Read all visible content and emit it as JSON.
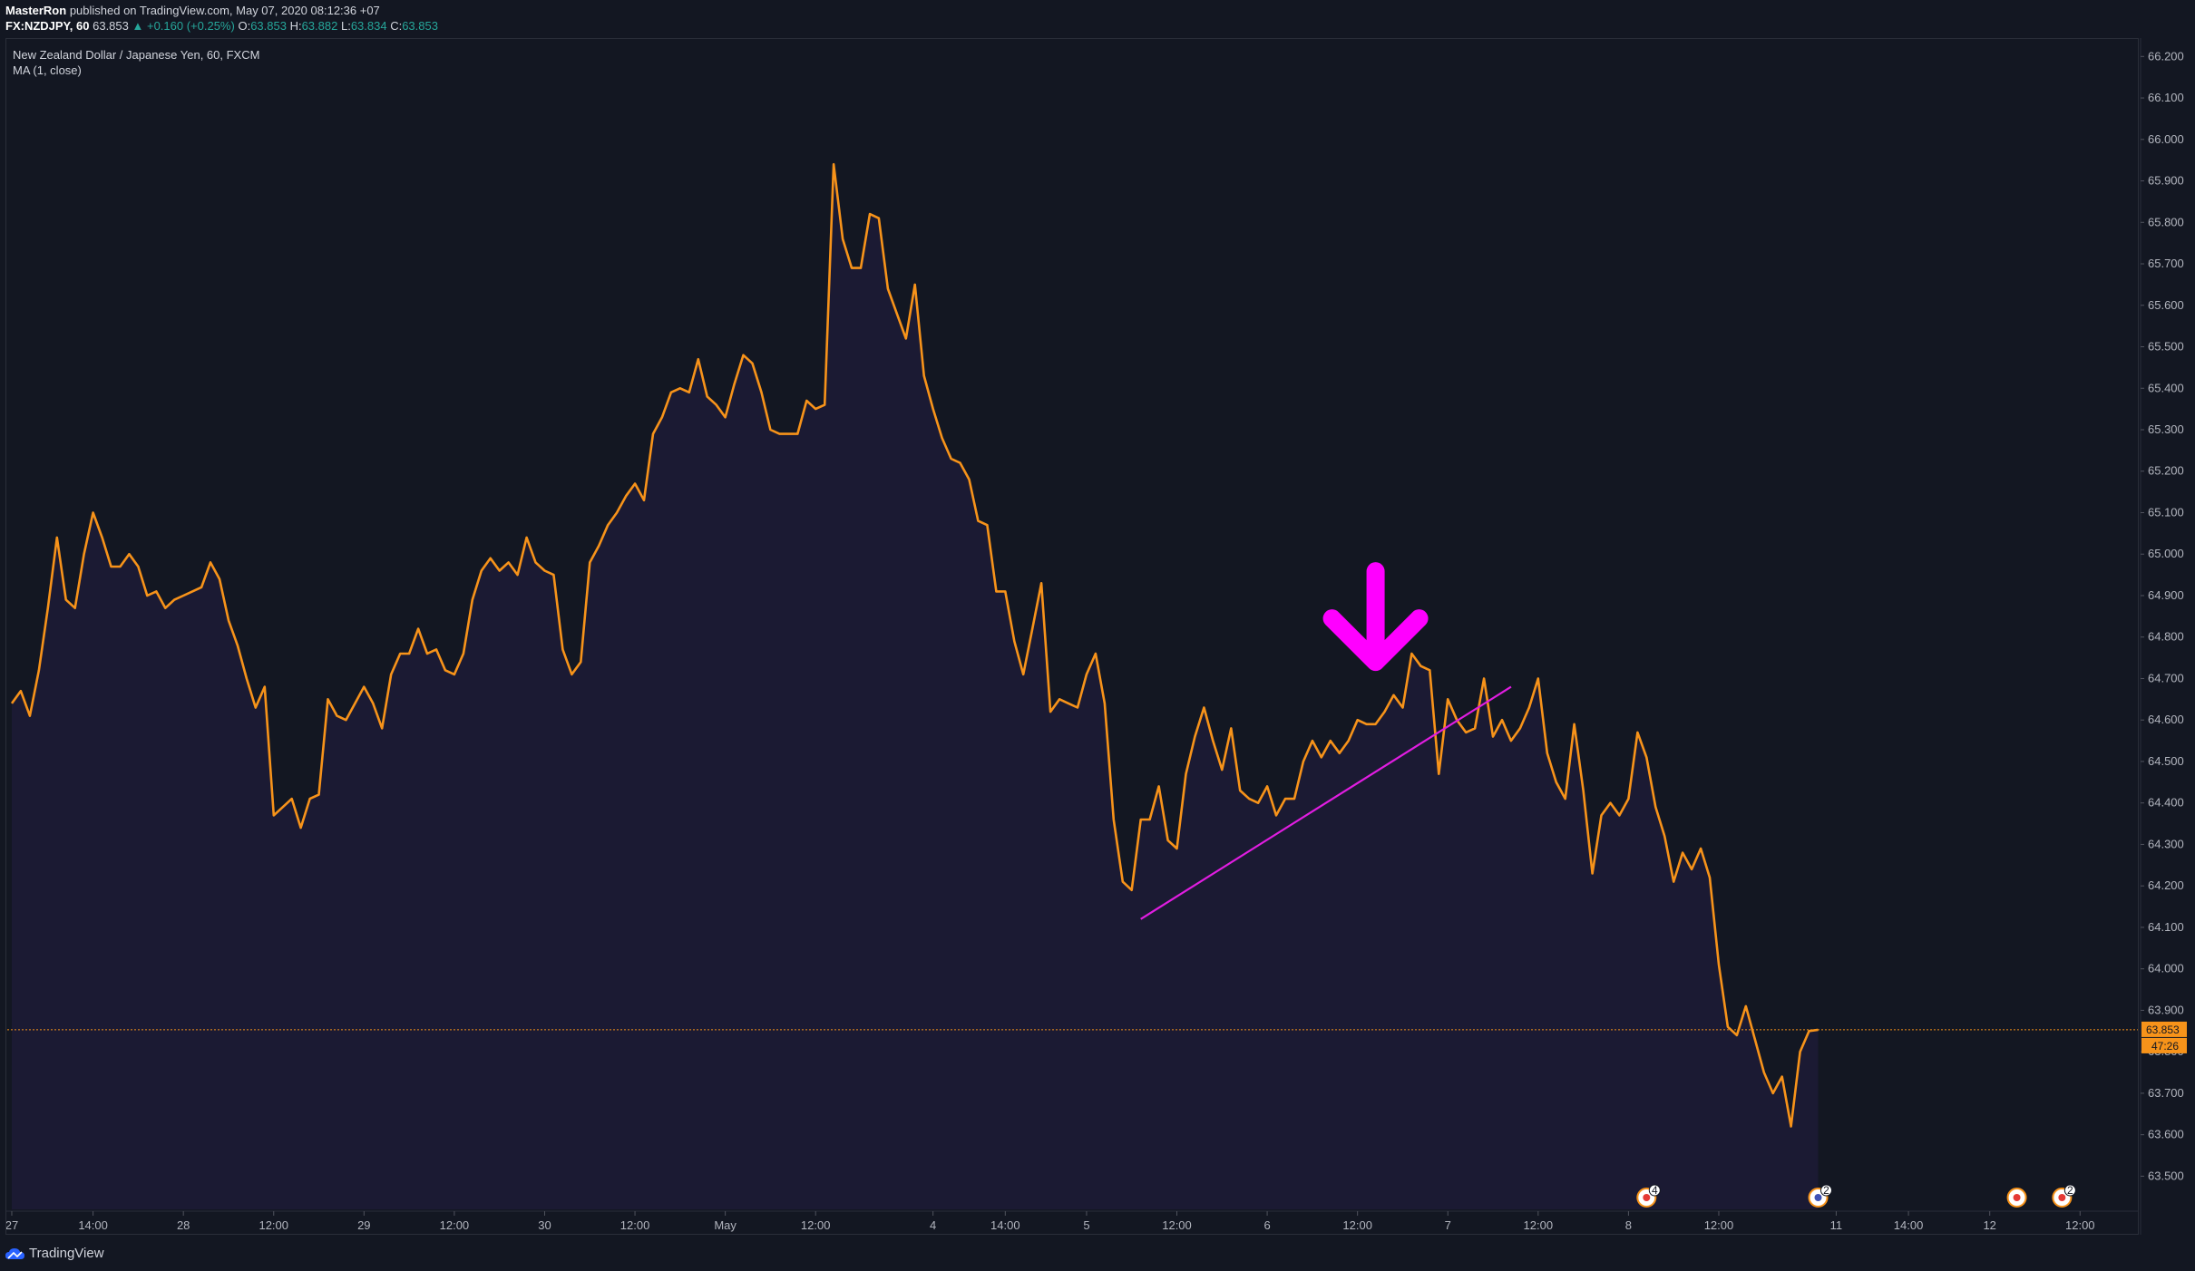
{
  "header": {
    "author": "MasterRon",
    "published": "published on TradingView.com, May 07, 2020 08:12:36 +07",
    "symbol": "FX:NZDJPY, 60",
    "last": "63.853",
    "change": "▲ +0.160 (+0.25%)",
    "o_label": "O:",
    "o_value": "63.853",
    "h_label": "H:",
    "h_value": "63.882",
    "l_label": "L:",
    "l_value": "63.834",
    "c_label": "C:",
    "c_value": "63.853"
  },
  "legend": {
    "title": "New Zealand Dollar / Japanese Yen, 60, FXCM",
    "indicator": "MA (1, close)"
  },
  "footer": {
    "brand": "TradingView"
  },
  "chart_data": {
    "type": "area",
    "title": "New Zealand Dollar / Japanese Yen, 60, FXCM",
    "colors": {
      "background": "#131722",
      "line": "#f7931a",
      "area_fill": "#1b1a33",
      "trendline": "#e11de1",
      "arrow": "#ff00ff",
      "price_line": "#f7931a"
    },
    "ylim": [
      63.42,
      66.24
    ],
    "y_ticks": [
      "63.500",
      "63.600",
      "63.700",
      "63.800",
      "63.900",
      "64.000",
      "64.100",
      "64.200",
      "64.300",
      "64.400",
      "64.500",
      "64.600",
      "64.700",
      "64.800",
      "64.900",
      "65.000",
      "65.100",
      "65.200",
      "65.300",
      "65.400",
      "65.500",
      "65.600",
      "65.700",
      "65.800",
      "65.900",
      "66.000",
      "66.100",
      "66.200"
    ],
    "x_ticks": [
      {
        "label": "27",
        "bar": 0
      },
      {
        "label": "14:00",
        "bar": 9
      },
      {
        "label": "28",
        "bar": 19
      },
      {
        "label": "12:00",
        "bar": 29
      },
      {
        "label": "29",
        "bar": 39
      },
      {
        "label": "12:00",
        "bar": 49
      },
      {
        "label": "30",
        "bar": 59
      },
      {
        "label": "12:00",
        "bar": 69
      },
      {
        "label": "May",
        "bar": 79
      },
      {
        "label": "12:00",
        "bar": 89
      },
      {
        "label": "4",
        "bar": 102
      },
      {
        "label": "14:00",
        "bar": 110
      },
      {
        "label": "5",
        "bar": 119
      },
      {
        "label": "12:00",
        "bar": 129
      },
      {
        "label": "6",
        "bar": 139
      },
      {
        "label": "12:00",
        "bar": 149
      },
      {
        "label": "7",
        "bar": 159
      },
      {
        "label": "12:00",
        "bar": 169
      },
      {
        "label": "8",
        "bar": 179
      },
      {
        "label": "12:00",
        "bar": 189
      },
      {
        "label": "11",
        "bar": 202
      },
      {
        "label": "14:00",
        "bar": 210
      },
      {
        "label": "12",
        "bar": 219
      },
      {
        "label": "12:00",
        "bar": 229
      }
    ],
    "x_bar_count": 236,
    "series": [
      {
        "values": [
          64.64,
          64.67,
          64.61,
          64.72,
          64.87,
          65.04,
          64.89,
          64.87,
          65.0,
          65.1,
          65.04,
          64.97,
          64.97,
          65.0,
          64.97,
          64.9,
          64.91,
          64.87,
          64.89,
          64.9,
          64.91,
          64.92,
          64.98,
          64.94,
          64.84,
          64.78,
          64.7,
          64.63,
          64.68,
          64.37,
          64.39,
          64.41,
          64.34,
          64.41,
          64.42,
          64.65,
          64.61,
          64.6,
          64.64,
          64.68,
          64.64,
          64.58,
          64.71,
          64.76,
          64.76,
          64.82,
          64.76,
          64.77,
          64.72,
          64.71,
          64.76,
          64.89,
          64.96,
          64.99,
          64.96,
          64.98,
          64.95,
          65.04,
          64.98,
          64.96,
          64.95,
          64.77,
          64.71,
          64.74,
          64.98,
          65.02,
          65.07,
          65.1,
          65.14,
          65.17,
          65.13,
          65.29,
          65.33,
          65.39,
          65.4,
          65.39,
          65.47,
          65.38,
          65.36,
          65.33,
          65.41,
          65.48,
          65.46,
          65.39,
          65.3,
          65.29,
          65.29,
          65.29,
          65.37,
          65.35,
          65.36,
          65.94,
          65.76,
          65.69,
          65.69,
          65.82,
          65.81,
          65.64,
          65.58,
          65.52,
          65.65,
          65.43,
          65.35,
          65.28,
          65.23,
          65.22,
          65.18,
          65.08,
          65.07,
          64.91,
          64.91,
          64.79,
          64.71,
          64.82,
          64.93,
          64.62,
          64.65,
          64.64,
          64.63,
          64.71,
          64.76,
          64.64,
          64.36,
          64.21,
          64.19,
          64.36,
          64.36,
          64.44,
          64.31,
          64.29,
          64.47,
          64.56,
          64.63,
          64.55,
          64.48,
          64.58,
          64.43,
          64.41,
          64.4,
          64.44,
          64.37,
          64.41,
          64.41,
          64.5,
          64.55,
          64.51,
          64.55,
          64.52,
          64.55,
          64.6,
          64.59,
          64.59,
          64.62,
          64.66,
          64.63,
          64.76,
          64.73,
          64.72,
          64.47,
          64.65,
          64.6,
          64.57,
          64.58,
          64.7,
          64.56,
          64.6,
          64.55,
          64.58,
          64.63,
          64.7,
          64.52,
          64.45,
          64.41,
          64.59,
          64.43,
          64.23,
          64.37,
          64.4,
          64.37,
          64.41,
          64.57,
          64.51,
          64.39,
          64.32,
          64.21,
          64.28,
          64.24,
          64.29,
          64.22,
          64.01,
          63.86,
          63.84,
          63.91,
          63.83,
          63.75,
          63.7,
          63.74,
          63.62,
          63.8,
          63.85,
          63.853
        ]
      }
    ],
    "current_price": "63.853",
    "countdown": "47:26",
    "trendline": {
      "from": {
        "bar": 125,
        "y": 64.12
      },
      "to": {
        "bar": 166,
        "y": 64.68
      }
    },
    "annotation_arrow": {
      "bar": 151,
      "tip_y": 64.74,
      "direction": "down"
    },
    "event_markers": [
      {
        "bar": 181,
        "badge": "4",
        "icon": "flag-icon"
      },
      {
        "bar": 200,
        "badge": "2",
        "icon": "globe-icon"
      },
      {
        "bar": 222,
        "badge": "",
        "icon": "flag-icon"
      },
      {
        "bar": 227,
        "badge": "2",
        "icon": "flag-icon"
      }
    ],
    "grid": false,
    "legend_position": "top-left"
  }
}
